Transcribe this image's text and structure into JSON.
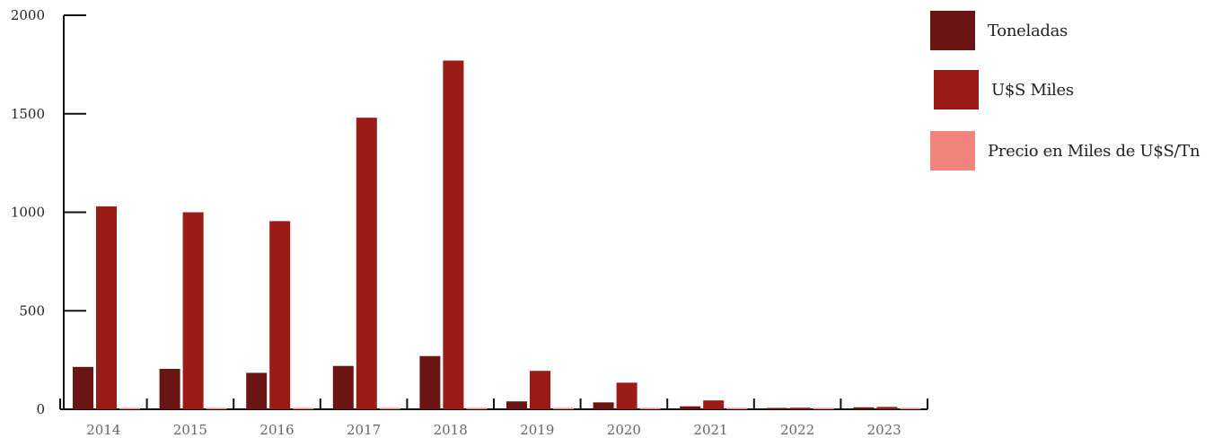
{
  "chart_data": {
    "type": "bar",
    "categories": [
      "2014",
      "2015",
      "2016",
      "2017",
      "2018",
      "2019",
      "2020",
      "2021",
      "2022",
      "2023"
    ],
    "series": [
      {
        "name": "Toneladas",
        "color": "#6b1414",
        "values": [
          215,
          205,
          185,
          220,
          270,
          40,
          35,
          15,
          5,
          10
        ]
      },
      {
        "name": "U$S Miles",
        "color": "#9b1b17",
        "values": [
          1030,
          1000,
          955,
          1480,
          1770,
          195,
          135,
          45,
          8,
          12
        ]
      },
      {
        "name": "Precio en Miles de U$S/Tn",
        "color": "#f0847c",
        "values": [
          4.8,
          4.9,
          5.2,
          6.7,
          6.6,
          4.9,
          3.9,
          3.0,
          1.6,
          1.2
        ]
      }
    ],
    "yticks": [
      "0",
      "500",
      "1000",
      "1500",
      "2000"
    ],
    "ylim": [
      0,
      2000
    ],
    "grid": false,
    "legend": "right",
    "title": "",
    "xlabel": "",
    "ylabel": ""
  }
}
